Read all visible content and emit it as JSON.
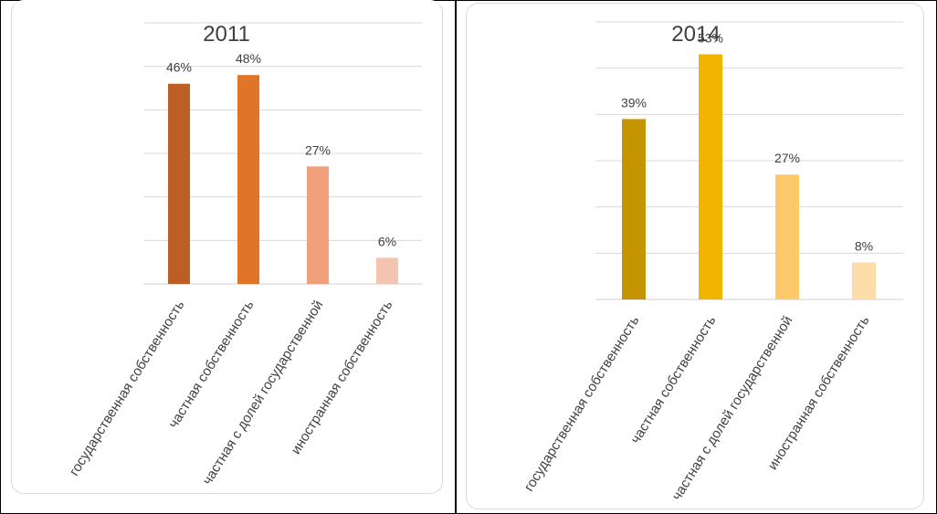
{
  "chart_data": [
    {
      "type": "bar",
      "title": "2011",
      "categories": [
        "государственная собственность",
        "частная собственность",
        "частная с долей государственной",
        "иностранная собственность"
      ],
      "values": [
        46,
        48,
        27,
        6
      ],
      "data_labels": [
        "46%",
        "48%",
        "27%",
        "6%"
      ],
      "ylim": [
        0,
        60
      ],
      "grid": true,
      "colors": [
        "#bd5e24",
        "#e07428",
        "#f0a07a",
        "#f5c4b0"
      ]
    },
    {
      "type": "bar",
      "title": "2014",
      "categories": [
        "государственная собственность",
        "частная собственность",
        "частная с долей государственной",
        "иностранная собственность"
      ],
      "values": [
        39,
        53,
        27,
        8
      ],
      "data_labels": [
        "39%",
        "53%",
        "27%",
        "8%"
      ],
      "ylim": [
        0,
        60
      ],
      "grid": true,
      "colors": [
        "#c49500",
        "#f1b400",
        "#fdc96a",
        "#fddcaa"
      ]
    }
  ]
}
